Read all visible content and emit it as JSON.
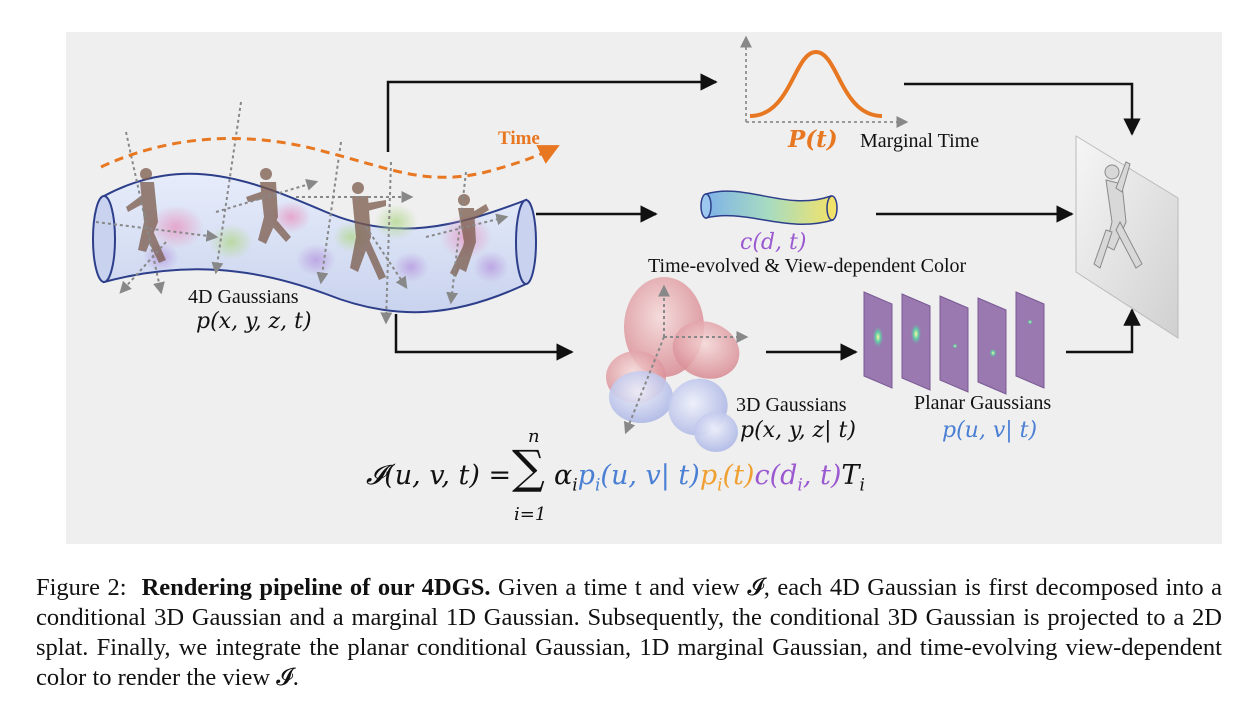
{
  "figure": {
    "time_label": "Time",
    "marginal_time_math": "P(t)",
    "marginal_time_label": "Marginal Time",
    "color_math": "c(d, t)",
    "color_label": "Time-evolved & View-dependent Color",
    "gaussians4d_label": "4D Gaussians",
    "gaussians4d_math": "p(x, y, z, t)",
    "gaussians3d_label": "3D Gaussians",
    "gaussians3d_math": "p(x, y, z| t)",
    "planar_label": "Planar Gaussians",
    "planar_math": "p(u, v| t)",
    "equation": {
      "lhs": "𝓘(u, v, t) = ",
      "sum_top": "n",
      "sum_sign": "∑",
      "sum_bottom": "i=1",
      "alpha": "α",
      "alpha_sub": "i",
      "p1": "p",
      "p1_sub": "i",
      "p1_args": "(u, v| t)",
      "p2": "p",
      "p2_sub": "i",
      "p2_args": "(t)",
      "c_open": "c(d",
      "c_sub": "i",
      "c_close": ", t)",
      "T": "T",
      "T_sub": "i"
    },
    "colors": {
      "time": "#e87722",
      "color_fn": "#9b59d0",
      "planar": "#4a7fd4",
      "panel_bg": "#efefef"
    }
  },
  "caption": {
    "prefix": "Figure 2:  ",
    "bold": "Rendering pipeline of our 4DGS.",
    "body": " Given a time t and view 𝓘, each 4D Gaussian is first decomposed into a conditional 3D Gaussian and a marginal 1D Gaussian.  Subsequently, the conditional 3D Gaussian is projected to a 2D splat.  Finally, we integrate the planar conditional Gaussian, 1D marginal Gaussian, and time-evolving view-dependent color to render the view 𝓘."
  }
}
